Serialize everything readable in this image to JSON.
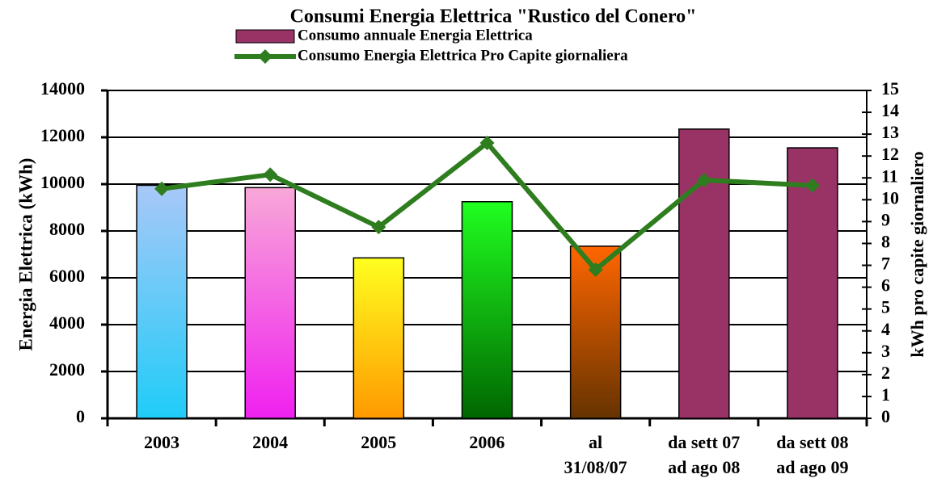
{
  "chart_data": {
    "type": "bar_line",
    "title": "Consumi Energia Elettrica \"Rustico del Conero\"",
    "y_label": "Energia Elettrica (kWh)",
    "y2_label": "kWh pro capite giornaliero",
    "categories": [
      "2003",
      "2004",
      "2005",
      "2006",
      "al\n31/08/07",
      "da sett 07\nad ago 08",
      "da sett 08\nad ago 09"
    ],
    "series": [
      {
        "name": "Consumo annuale Energia Elettrica",
        "type": "bar",
        "color": "#993366",
        "bar_colors": [
          [
            "#a8c8f8",
            "#20ccf8"
          ],
          [
            "#f8a8d8",
            "#f020f0"
          ],
          [
            "#ffff20",
            "#ff9900"
          ],
          [
            "#20ff20",
            "#006600"
          ],
          [
            "#ff6600",
            "#663300"
          ],
          [
            "#993366",
            "#993366"
          ],
          [
            "#993366",
            "#993366"
          ]
        ],
        "values": [
          9950,
          9850,
          6850,
          9250,
          7350,
          12350,
          11550
        ]
      },
      {
        "name": "Consumo Energia Elettrica Pro Capite giornaliera",
        "type": "line",
        "axis": "y2",
        "color": "#2e7d1e",
        "values": [
          10.5,
          11.15,
          8.75,
          12.6,
          6.8,
          10.9,
          10.65
        ]
      }
    ],
    "ylim": [
      0,
      14000
    ],
    "yticks": [
      0,
      2000,
      4000,
      6000,
      8000,
      10000,
      12000,
      14000
    ],
    "y2lim": [
      0,
      15
    ],
    "y2ticks": [
      0,
      1,
      2,
      3,
      4,
      5,
      6,
      7,
      8,
      9,
      10,
      11,
      12,
      13,
      14,
      15
    ],
    "grid": true
  }
}
